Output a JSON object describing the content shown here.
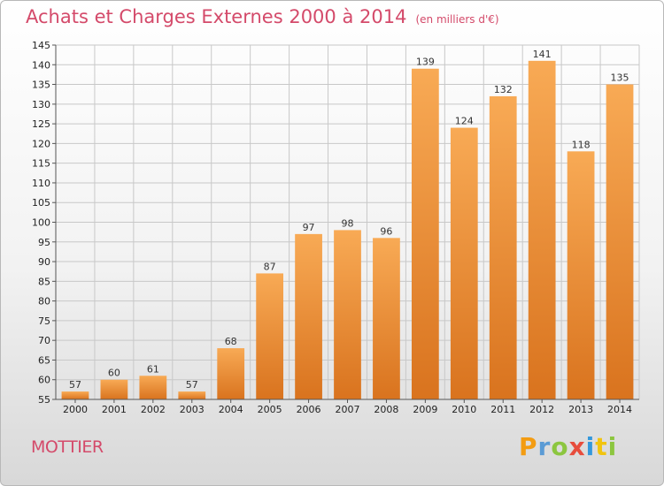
{
  "title": "Achats et Charges Externes 2000 à 2014",
  "subtitle": "(en milliers d'€)",
  "place": "MOTTIER",
  "logo": {
    "text": "Proxiti"
  },
  "colors": {
    "bar": "#f5a24d",
    "bar_dark": "#d9731e",
    "title": "#d44a6a",
    "grid": "#c8c8c8"
  },
  "chart_data": {
    "type": "bar",
    "title": "Achats et Charges Externes 2000 à 2014",
    "subtitle": "(en milliers d'€)",
    "xlabel": "",
    "ylabel": "",
    "categories": [
      "2000",
      "2001",
      "2002",
      "2003",
      "2004",
      "2005",
      "2006",
      "2007",
      "2008",
      "2009",
      "2010",
      "2011",
      "2012",
      "2013",
      "2014"
    ],
    "values": [
      57,
      60,
      61,
      57,
      68,
      87,
      97,
      98,
      96,
      139,
      124,
      132,
      141,
      118,
      135
    ],
    "ylim": [
      55,
      145
    ],
    "yticks": [
      55,
      60,
      65,
      70,
      75,
      80,
      85,
      90,
      95,
      100,
      105,
      110,
      115,
      120,
      125,
      130,
      135,
      140,
      145
    ],
    "grid": true,
    "legend": "none"
  }
}
